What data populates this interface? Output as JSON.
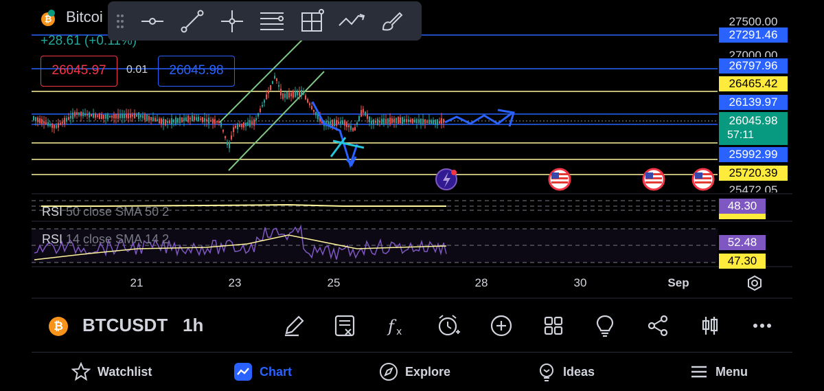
{
  "symbol": {
    "name_short": "Bitcoi",
    "change": "+28.61 (+0.11%)",
    "bid": "26045.97",
    "spread": "0.01",
    "ask": "26045.98"
  },
  "price_axis": {
    "top_ticks": [
      "27500.00",
      "27000.00",
      "25472.05"
    ],
    "labels": [
      {
        "text": "27291.46",
        "bg": "#2962ff",
        "fg": "#ffffff"
      },
      {
        "text": "26797.96",
        "bg": "#2962ff",
        "fg": "#ffffff"
      },
      {
        "text": "26465.42",
        "bg": "#ffeb3b",
        "fg": "#000000"
      },
      {
        "text": "26139.97",
        "bg": "#2962ff",
        "fg": "#ffffff"
      },
      {
        "text": "26045.98",
        "bg": "#089981",
        "fg": "#ffffff"
      },
      {
        "text": "57:11",
        "bg": "#089981",
        "fg": "#ffffff"
      },
      {
        "text": "25992.99",
        "bg": "#2962ff",
        "fg": "#ffffff"
      },
      {
        "text": "25720.39",
        "bg": "#ffeb3b",
        "fg": "#000000"
      }
    ]
  },
  "rsi": {
    "label1_prefix": "RSI",
    "label1_rest": " 50 close SMA 50 2",
    "value1": "48.30",
    "label2_prefix": "RSI",
    "label2_rest": " 14 close SMA 14 2",
    "value2a": "52.48",
    "value2b": "47.30"
  },
  "dates": [
    "21",
    "23",
    "25",
    "28",
    "30",
    "Sep"
  ],
  "bottom_toolbar": {
    "ticker": "BTCUSDT",
    "interval": "1h",
    "icons": [
      "pencil-icon",
      "note-icon",
      "fx-icon",
      "alarm-icon",
      "plus-circle-icon",
      "grid-icon",
      "bulb-icon",
      "share-icon",
      "candles-icon",
      "more-icon"
    ]
  },
  "nav": {
    "watchlist": "Watchlist",
    "chart": "Chart",
    "explore": "Explore",
    "ideas": "Ideas",
    "menu": "Menu"
  },
  "colors": {
    "background": "#000000",
    "blue_line": "#2962ff",
    "yellow_line": "#fff59d",
    "bid_red": "#f23645",
    "ask_blue": "#2962ff",
    "up": "#26a69a",
    "down": "#ef5350",
    "accent": "#2962ff",
    "rsi_purple": "#7e57c2"
  }
}
